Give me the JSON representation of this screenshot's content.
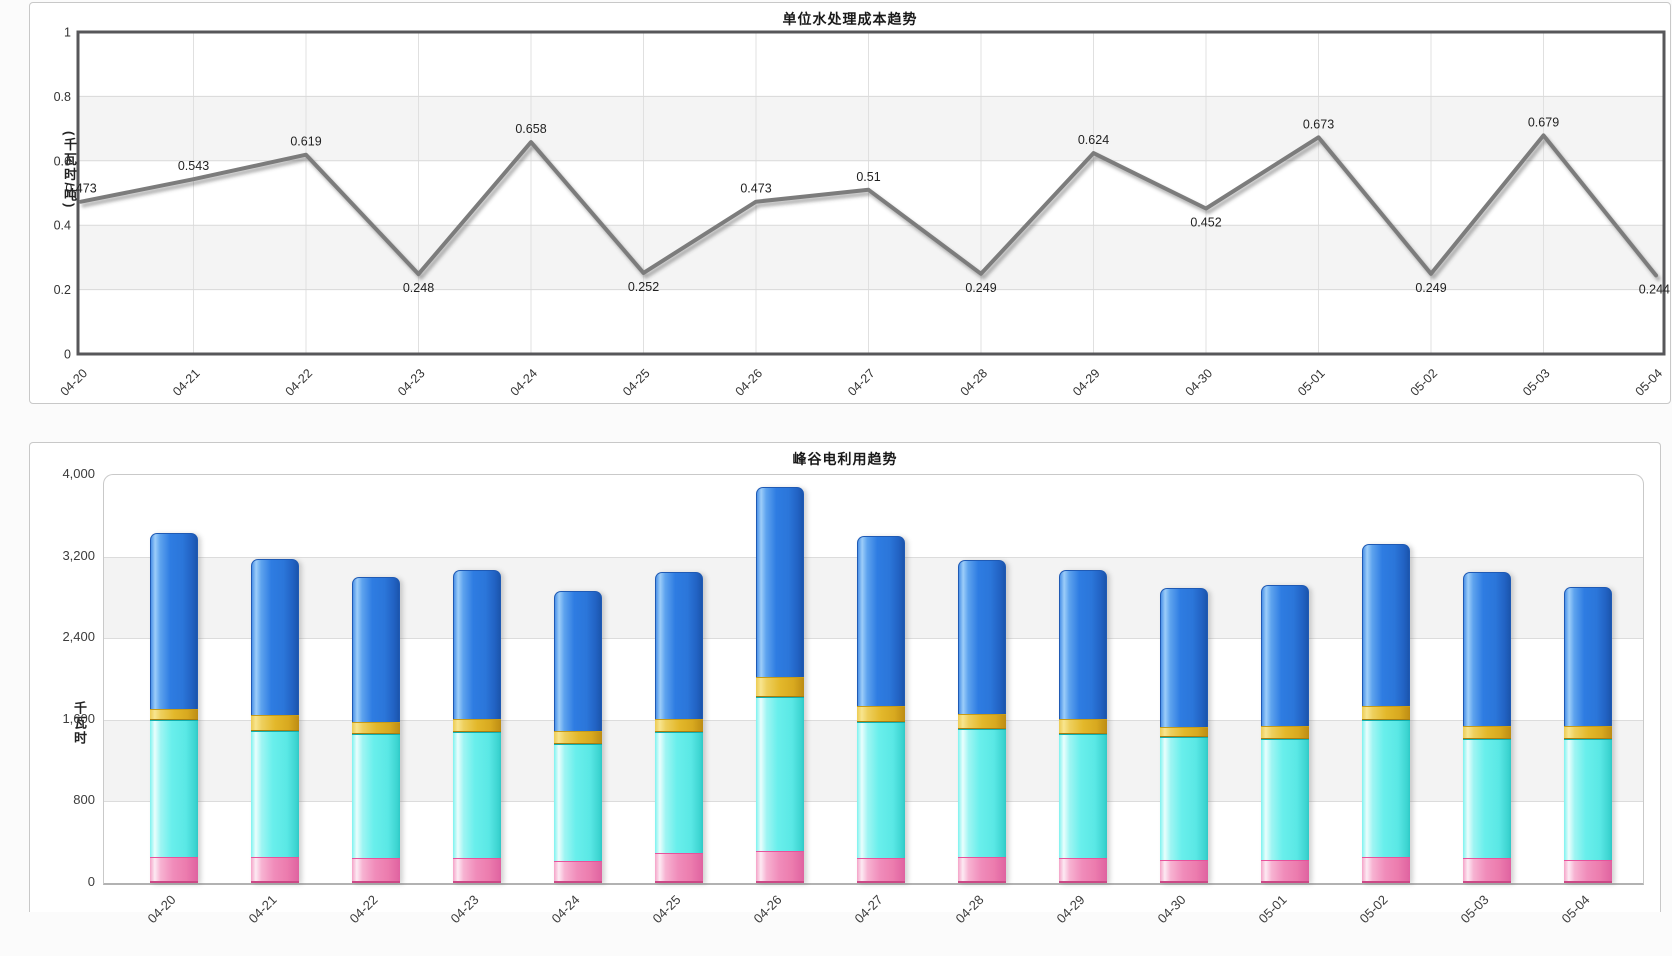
{
  "chart_data": [
    {
      "type": "line",
      "title": "单位水处理成本趋势",
      "xlabel": "",
      "ylabel": "(千瓦时/吨)",
      "categories": [
        "04-20",
        "04-21",
        "04-22",
        "04-23",
        "04-24",
        "04-25",
        "04-26",
        "04-27",
        "04-28",
        "04-29",
        "04-30",
        "05-01",
        "05-02",
        "05-03",
        "05-04"
      ],
      "values": [
        0.473,
        0.543,
        0.619,
        0.248,
        0.658,
        0.252,
        0.473,
        0.51,
        0.249,
        0.624,
        0.452,
        0.673,
        0.249,
        0.679,
        0.244
      ],
      "point_labels": [
        "0.473",
        "0.543",
        "0.619",
        "0.248",
        "0.658",
        "0.252",
        "0.473",
        "0.51",
        "0.249",
        "0.624",
        "0.452",
        "0.673",
        "0.249",
        "0.679",
        "0.244"
      ],
      "ylim": [
        0,
        1
      ],
      "y_tick_values": [
        0,
        0.2,
        0.4,
        0.6,
        0.8,
        1
      ],
      "y_tick_labels": [
        "0",
        "0.2",
        "0.4",
        "0.6",
        "0.8",
        "1"
      ],
      "grid": true,
      "legend": "none",
      "line_color": "#7c7c7c",
      "band_color": "#f4f4f4",
      "frame_color": "#57575a"
    },
    {
      "type": "bar",
      "stacked": true,
      "title": "峰谷电利用趋势",
      "xlabel": "",
      "ylabel": "千瓦时",
      "categories": [
        "04-20",
        "04-21",
        "04-22",
        "04-23",
        "04-24",
        "04-25",
        "04-26",
        "04-27",
        "04-28",
        "04-29",
        "04-30",
        "05-01",
        "05-02",
        "05-03",
        "05-04"
      ],
      "series": [
        {
          "name": "series-pink",
          "color": "#f08cba",
          "values": [
            260,
            260,
            245,
            245,
            215,
            290,
            310,
            245,
            255,
            245,
            225,
            225,
            260,
            245,
            225
          ]
        },
        {
          "name": "series-cyan",
          "color": "#6ef0ed",
          "values": [
            1340,
            1235,
            1220,
            1240,
            1150,
            1195,
            1515,
            1335,
            1255,
            1220,
            1210,
            1190,
            1340,
            1170,
            1190
          ]
        },
        {
          "name": "series-yellow",
          "color": "#e6bc30",
          "values": [
            105,
            155,
            115,
            125,
            125,
            125,
            195,
            155,
            150,
            145,
            95,
            125,
            135,
            125,
            125
          ]
        },
        {
          "name": "series-blue",
          "color": "#2e7ce2",
          "values": [
            1730,
            1530,
            1425,
            1455,
            1370,
            1435,
            1865,
            1670,
            1510,
            1455,
            1365,
            1385,
            1585,
            1505,
            1365
          ]
        }
      ],
      "stack_totals": [
        3435,
        3180,
        3005,
        3065,
        2860,
        3045,
        3885,
        3405,
        3170,
        3065,
        2895,
        2925,
        3320,
        3045,
        2905
      ],
      "ylim": [
        0,
        4000
      ],
      "y_tick_values": [
        0,
        800,
        1600,
        2400,
        3200,
        4000
      ],
      "y_tick_labels": [
        "0",
        "800",
        "1,600",
        "2,400",
        "3,200",
        "4,000"
      ],
      "grid": true,
      "legend": "none"
    }
  ]
}
